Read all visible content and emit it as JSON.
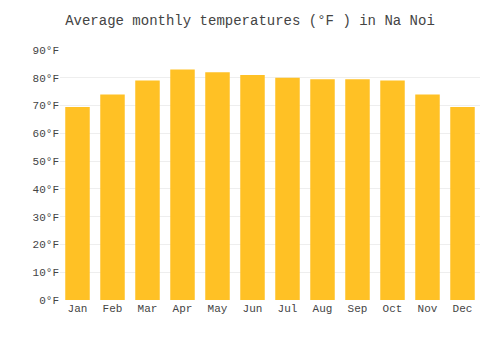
{
  "chart_data": {
    "type": "bar",
    "title": "Average monthly temperatures (°F ) in Na Noi",
    "categories": [
      "Jan",
      "Feb",
      "Mar",
      "Apr",
      "May",
      "Jun",
      "Jul",
      "Aug",
      "Sep",
      "Oct",
      "Nov",
      "Dec"
    ],
    "values": [
      69.5,
      74,
      79,
      83,
      82,
      81,
      80,
      79.5,
      79.5,
      79,
      74,
      69.5
    ],
    "color": "#FFC125",
    "ylim": [
      0,
      90
    ],
    "yticks": [
      {
        "value": 0,
        "label": "0°F"
      },
      {
        "value": 10,
        "label": "10°F"
      },
      {
        "value": 20,
        "label": "20°F"
      },
      {
        "value": 30,
        "label": "30°F"
      },
      {
        "value": 40,
        "label": "40°F"
      },
      {
        "value": 50,
        "label": "50°F"
      },
      {
        "value": 60,
        "label": "60°F"
      },
      {
        "value": 70,
        "label": "70°F"
      },
      {
        "value": 80,
        "label": "80°F"
      },
      {
        "value": 90,
        "label": "90°F"
      }
    ],
    "grid": true
  }
}
